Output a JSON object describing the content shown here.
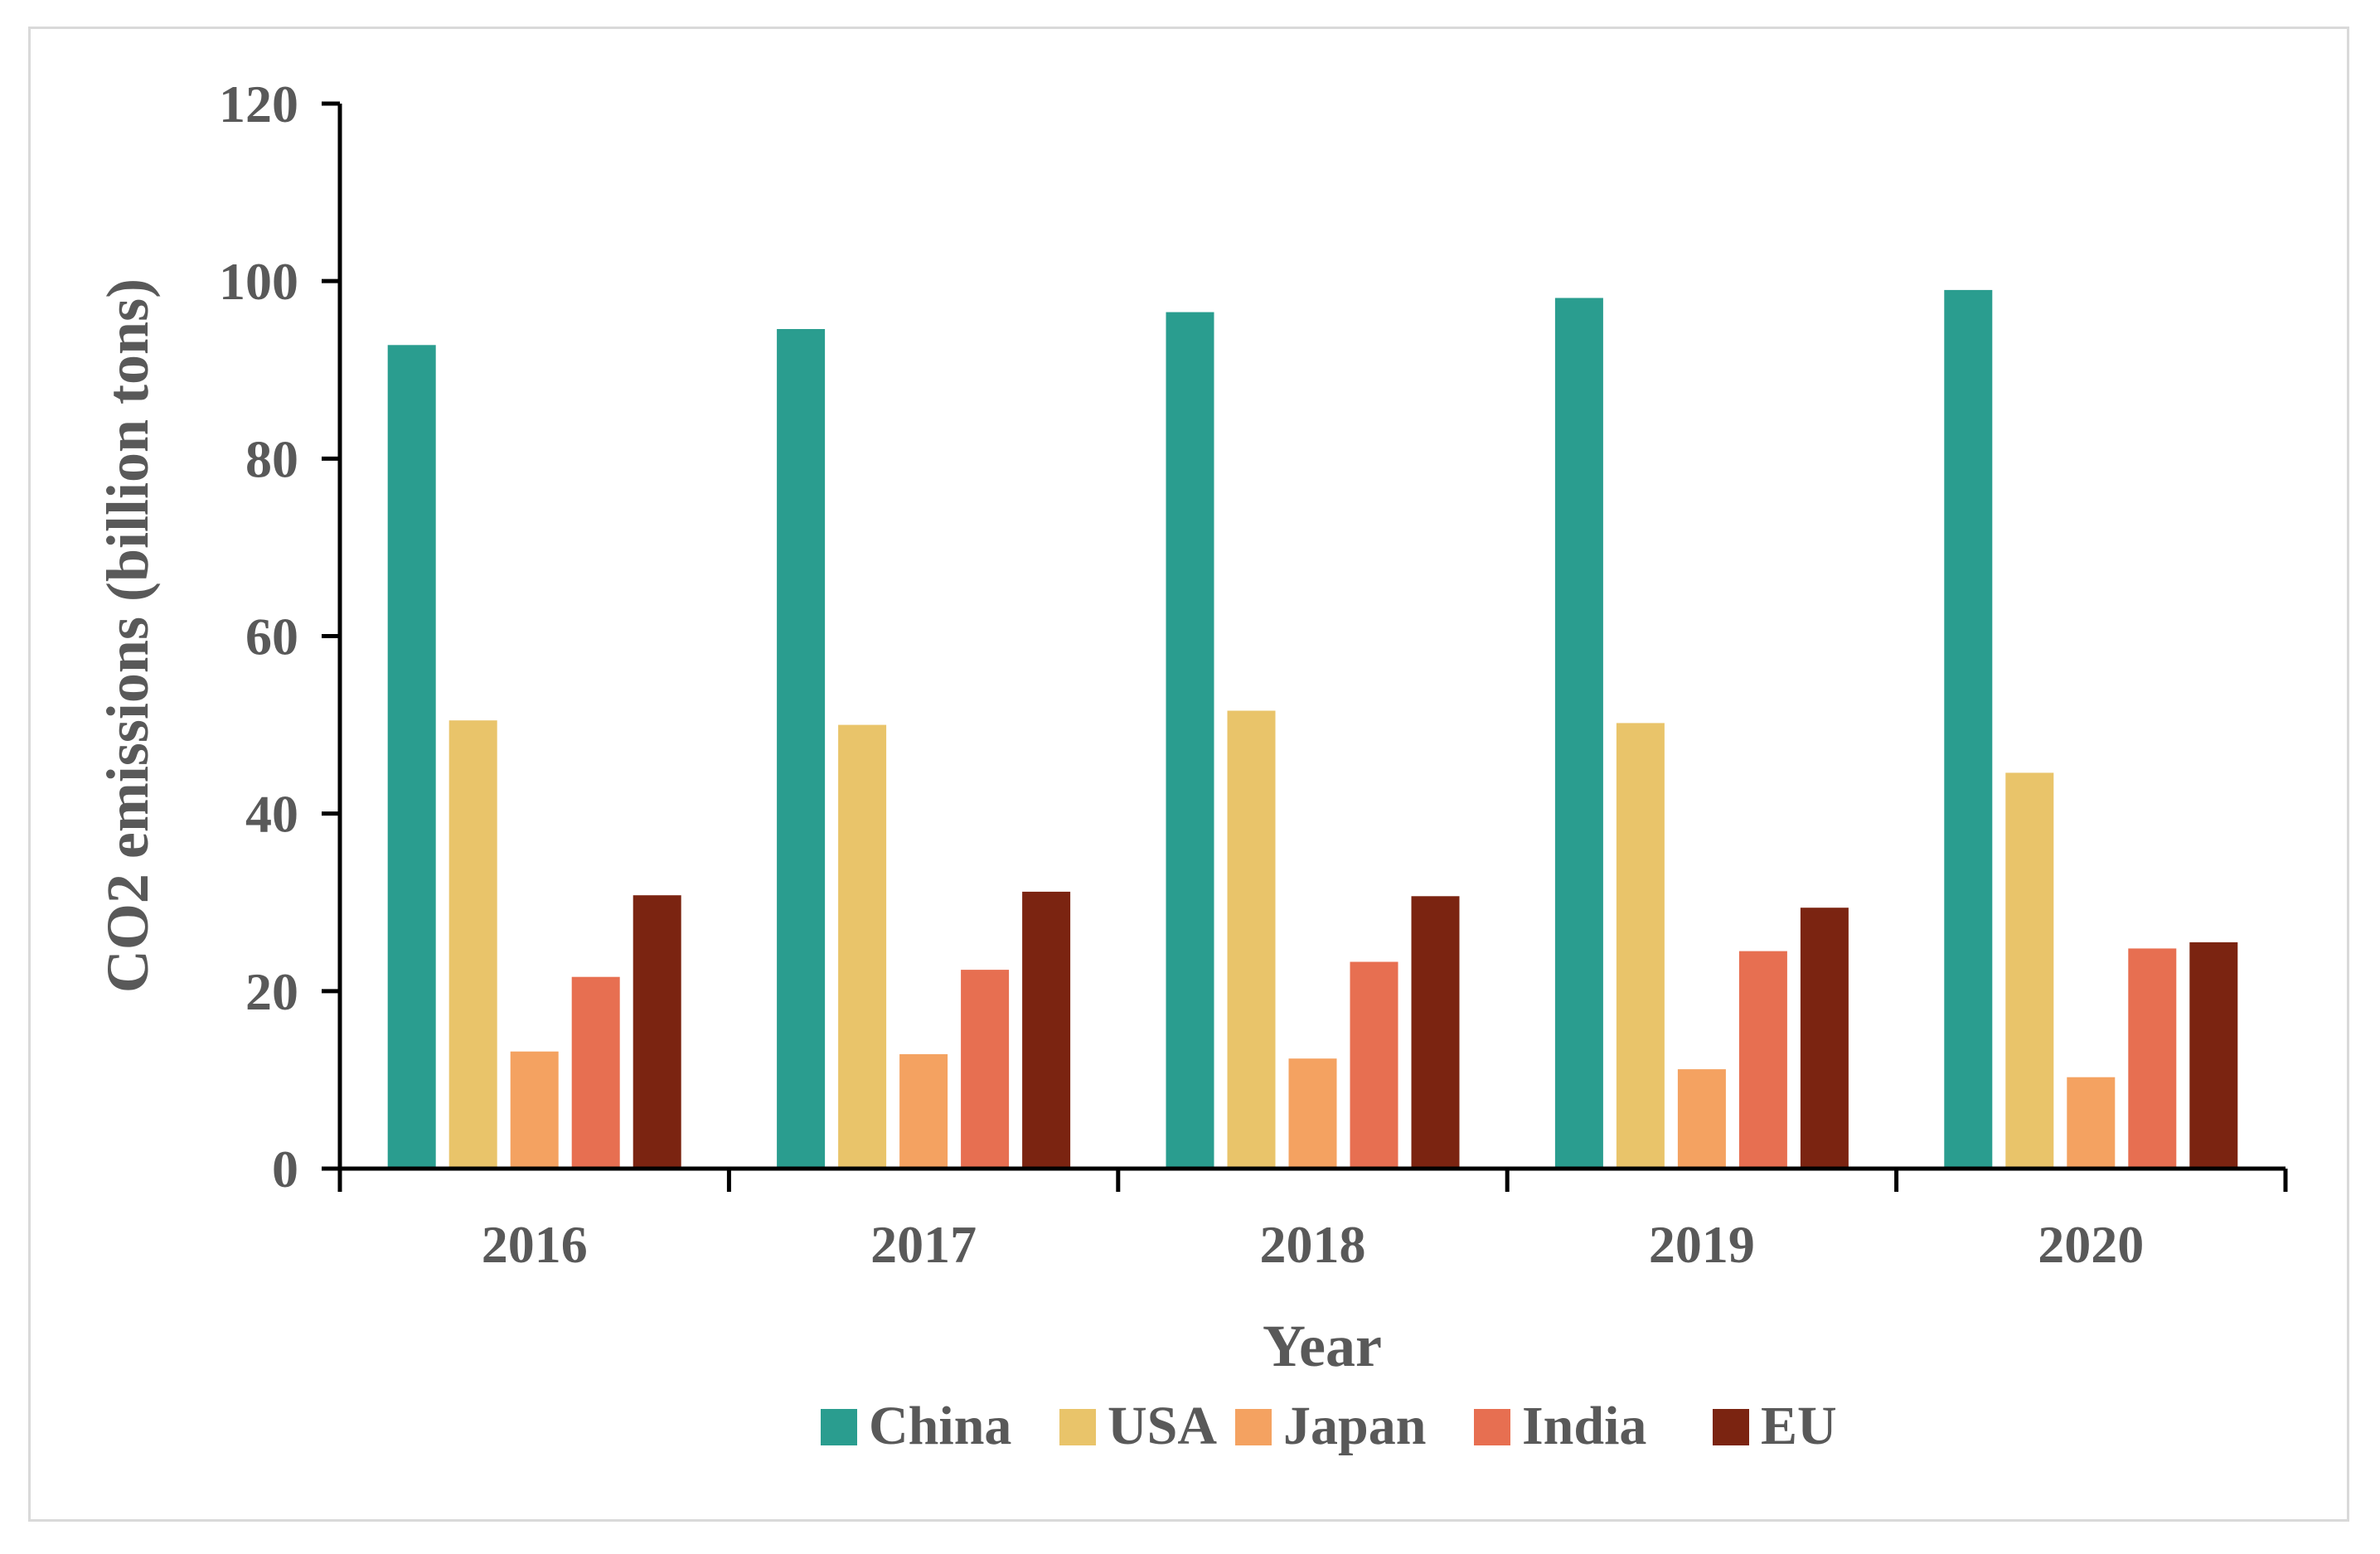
{
  "chart_data": {
    "type": "bar",
    "title": "",
    "xlabel": "Year",
    "ylabel": "CO2 emissions  (billion tons)",
    "ylim": [
      0,
      120
    ],
    "yticks": [
      0,
      20,
      40,
      60,
      80,
      100,
      120
    ],
    "grid": false,
    "legend_position": "bottom",
    "categories": [
      "2016",
      "2017",
      "2018",
      "2019",
      "2020"
    ],
    "series": [
      {
        "name": "China",
        "color": "#2a9d8f",
        "values": [
          92.8,
          94.6,
          96.5,
          98.1,
          99.0
        ]
      },
      {
        "name": "USA",
        "color": "#e9c46a",
        "values": [
          50.5,
          50.0,
          51.6,
          50.2,
          44.6
        ]
      },
      {
        "name": "Japan",
        "color": "#f4a261",
        "values": [
          13.2,
          12.9,
          12.4,
          11.2,
          10.3
        ]
      },
      {
        "name": "India",
        "color": "#e76f51",
        "values": [
          21.6,
          22.4,
          23.3,
          24.5,
          24.8
        ]
      },
      {
        "name": "EU",
        "color": "#7b2411",
        "values": [
          30.8,
          31.2,
          30.7,
          29.4,
          25.5
        ]
      }
    ]
  }
}
